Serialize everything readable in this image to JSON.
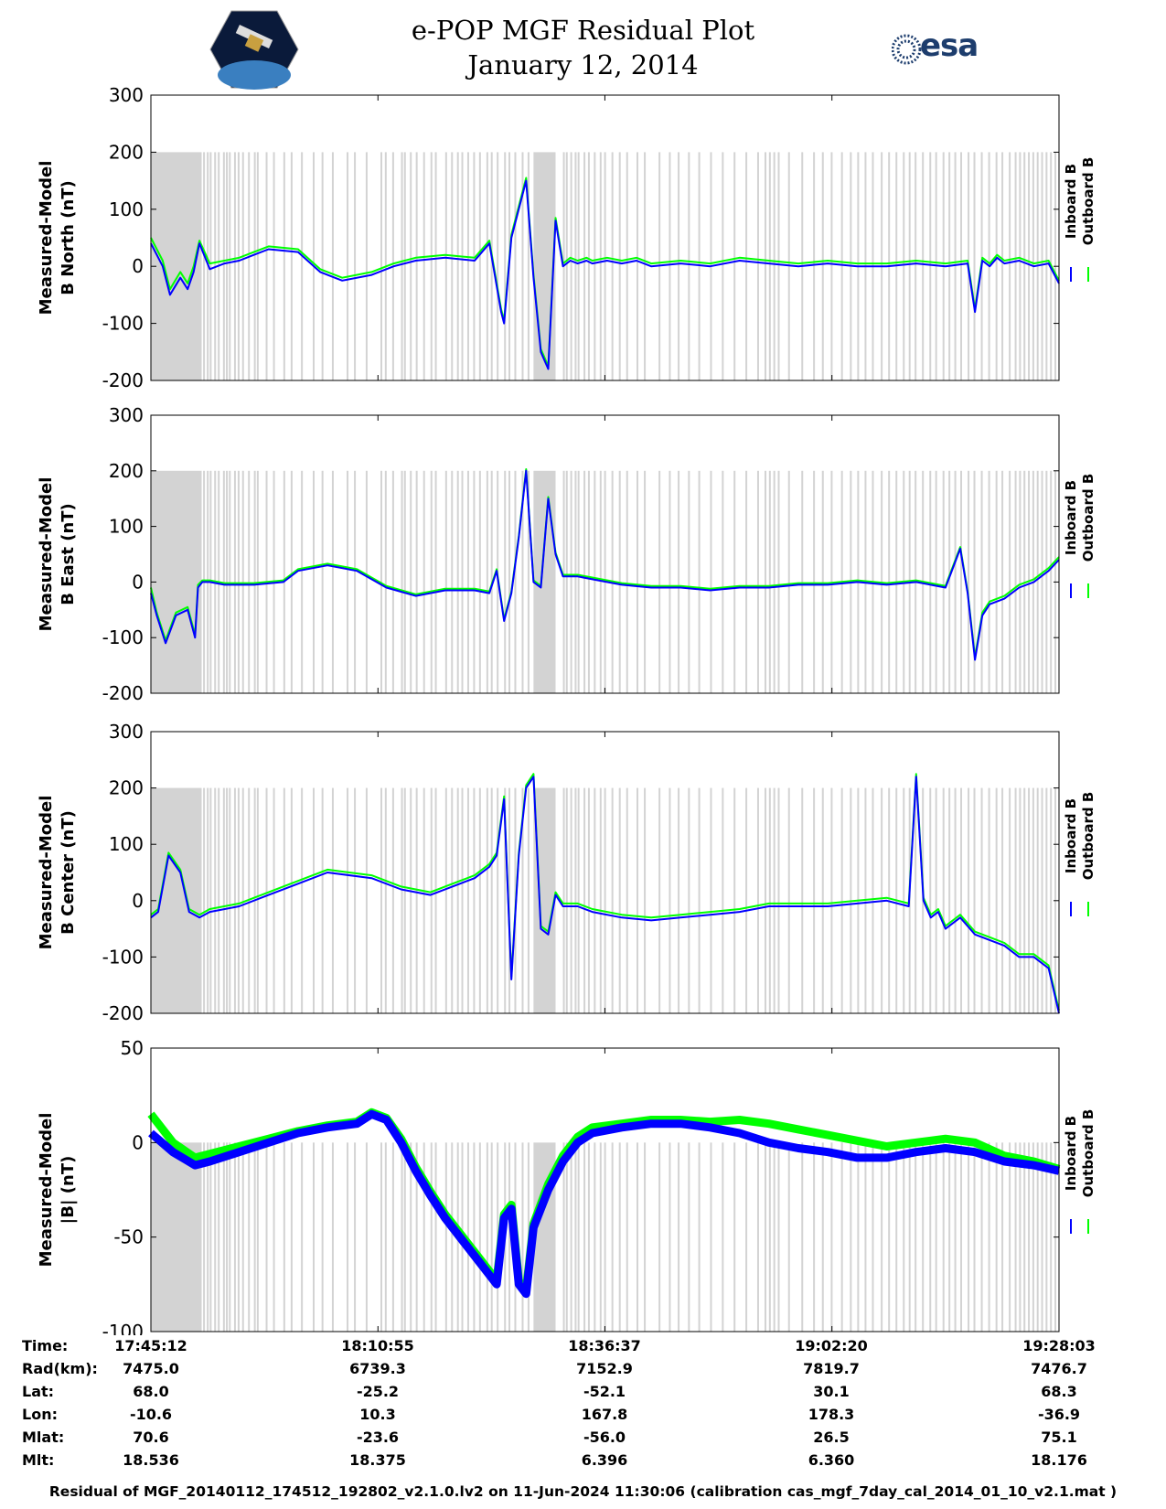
{
  "header": {
    "title_line1": "e-POP MGF Residual Plot",
    "title_line2": "January 12, 2014",
    "logo_left": "cassiope-mission-logo",
    "logo_right_text": "esa"
  },
  "colors": {
    "inboard": "#0000ff",
    "outboard": "#00ff00",
    "gap_shading": "#d3d3d3"
  },
  "chart_data": [
    {
      "type": "line",
      "panel": "b-north",
      "ylabel_line1": "Measured-Model",
      "ylabel_line2": "B North (nT)",
      "ylim": [
        -200,
        300
      ],
      "yticks": [
        -200,
        -100,
        0,
        100,
        200,
        300
      ],
      "xlim": [
        0,
        6171
      ],
      "xtick_seconds": [
        0,
        1543,
        3085,
        4628,
        6171
      ],
      "legend": [
        "Inboard B",
        "Outboard B"
      ],
      "legend_placement": "right-outside",
      "series": [
        {
          "name": "Inboard B",
          "x": [
            0,
            80,
            130,
            200,
            250,
            290,
            330,
            400,
            500,
            600,
            700,
            800,
            1000,
            1150,
            1300,
            1500,
            1650,
            1800,
            2000,
            2200,
            2300,
            2380,
            2400,
            2450,
            2550,
            2600,
            2650,
            2700,
            2750,
            2800,
            2850,
            2900,
            2960,
            3000,
            3100,
            3200,
            3300,
            3400,
            3600,
            3800,
            4000,
            4200,
            4400,
            4600,
            4800,
            5000,
            5200,
            5400,
            5550,
            5600,
            5650,
            5700,
            5750,
            5800,
            5900,
            6000,
            6100,
            6171
          ],
          "values": [
            40,
            0,
            -50,
            -20,
            -40,
            -10,
            40,
            -5,
            5,
            10,
            20,
            30,
            25,
            -10,
            -25,
            -15,
            0,
            10,
            15,
            10,
            40,
            -80,
            -100,
            50,
            150,
            -20,
            -150,
            -180,
            80,
            0,
            10,
            5,
            10,
            5,
            10,
            5,
            10,
            0,
            5,
            0,
            10,
            5,
            0,
            5,
            0,
            0,
            5,
            0,
            5,
            -80,
            10,
            0,
            15,
            5,
            10,
            0,
            5,
            -30
          ]
        },
        {
          "name": "Outboard B",
          "x": [
            0,
            80,
            130,
            200,
            250,
            290,
            330,
            400,
            500,
            600,
            700,
            800,
            1000,
            1150,
            1300,
            1500,
            1650,
            1800,
            2000,
            2200,
            2300,
            2380,
            2400,
            2450,
            2550,
            2600,
            2650,
            2700,
            2750,
            2800,
            2850,
            2900,
            2960,
            3000,
            3100,
            3200,
            3300,
            3400,
            3600,
            3800,
            4000,
            4200,
            4400,
            4600,
            4800,
            5000,
            5200,
            5400,
            5550,
            5600,
            5650,
            5700,
            5750,
            5800,
            5900,
            6000,
            6100,
            6171
          ],
          "values": [
            50,
            10,
            -40,
            -10,
            -30,
            0,
            45,
            5,
            10,
            15,
            25,
            35,
            30,
            -5,
            -20,
            -10,
            5,
            15,
            20,
            15,
            45,
            -75,
            -95,
            55,
            155,
            -15,
            -145,
            -175,
            85,
            5,
            15,
            10,
            15,
            10,
            15,
            10,
            15,
            5,
            10,
            5,
            15,
            10,
            5,
            10,
            5,
            5,
            10,
            5,
            10,
            -75,
            15,
            5,
            20,
            10,
            15,
            5,
            10,
            -25
          ]
        }
      ]
    },
    {
      "type": "line",
      "panel": "b-east",
      "ylabel_line1": "Measured-Model",
      "ylabel_line2": "B East (nT)",
      "ylim": [
        -200,
        300
      ],
      "yticks": [
        -200,
        -100,
        0,
        100,
        200,
        300
      ],
      "xlim": [
        0,
        6171
      ],
      "legend": [
        "Inboard B",
        "Outboard B"
      ],
      "legend_placement": "right-outside",
      "series": [
        {
          "name": "Inboard B",
          "x": [
            0,
            40,
            100,
            170,
            250,
            300,
            320,
            350,
            400,
            500,
            700,
            900,
            1000,
            1200,
            1400,
            1600,
            1800,
            2000,
            2200,
            2300,
            2350,
            2400,
            2450,
            2500,
            2550,
            2600,
            2650,
            2700,
            2750,
            2800,
            2900,
            3000,
            3200,
            3400,
            3600,
            3800,
            4000,
            4200,
            4400,
            4600,
            4800,
            5000,
            5200,
            5400,
            5500,
            5550,
            5600,
            5650,
            5700,
            5800,
            5900,
            6000,
            6100,
            6171
          ],
          "values": [
            -20,
            -60,
            -110,
            -60,
            -50,
            -100,
            -10,
            0,
            0,
            -5,
            -5,
            0,
            20,
            30,
            20,
            -10,
            -25,
            -15,
            -15,
            -20,
            20,
            -70,
            -20,
            80,
            200,
            0,
            -10,
            150,
            50,
            10,
            10,
            5,
            -5,
            -10,
            -10,
            -15,
            -10,
            -10,
            -5,
            -5,
            0,
            -5,
            0,
            -10,
            60,
            -20,
            -140,
            -60,
            -40,
            -30,
            -10,
            0,
            20,
            40
          ]
        },
        {
          "name": "Outboard B",
          "x": [
            0,
            40,
            100,
            170,
            250,
            300,
            320,
            350,
            400,
            500,
            700,
            900,
            1000,
            1200,
            1400,
            1600,
            1800,
            2000,
            2200,
            2300,
            2350,
            2400,
            2450,
            2500,
            2550,
            2600,
            2650,
            2700,
            2750,
            2800,
            2900,
            3000,
            3200,
            3400,
            3600,
            3800,
            4000,
            4200,
            4400,
            4600,
            4800,
            5000,
            5200,
            5400,
            5500,
            5550,
            5600,
            5650,
            5700,
            5800,
            5900,
            6000,
            6100,
            6171
          ],
          "values": [
            -10,
            -55,
            -105,
            -55,
            -45,
            -95,
            -5,
            3,
            3,
            -2,
            -2,
            3,
            23,
            33,
            23,
            -7,
            -22,
            -12,
            -12,
            -17,
            23,
            -67,
            -17,
            83,
            203,
            3,
            -7,
            153,
            53,
            13,
            13,
            8,
            -2,
            -7,
            -7,
            -12,
            -7,
            -7,
            -2,
            -2,
            3,
            -2,
            3,
            -7,
            63,
            -17,
            -135,
            -55,
            -35,
            -25,
            -5,
            5,
            25,
            45
          ]
        }
      ]
    },
    {
      "type": "line",
      "panel": "b-center",
      "ylabel_line1": "Measured-Model",
      "ylabel_line2": "B Center (nT)",
      "ylim": [
        -200,
        300
      ],
      "yticks": [
        -200,
        -100,
        0,
        100,
        200,
        300
      ],
      "xlim": [
        0,
        6171
      ],
      "legend": [
        "Inboard B",
        "Outboard B"
      ],
      "legend_placement": "right-outside",
      "series": [
        {
          "name": "Inboard B",
          "x": [
            0,
            50,
            120,
            200,
            260,
            330,
            400,
            600,
            800,
            1000,
            1200,
            1500,
            1700,
            1900,
            2100,
            2200,
            2300,
            2350,
            2400,
            2450,
            2500,
            2550,
            2600,
            2650,
            2700,
            2750,
            2800,
            2900,
            3000,
            3200,
            3400,
            3600,
            3800,
            4000,
            4200,
            4400,
            4600,
            4800,
            5000,
            5150,
            5200,
            5250,
            5300,
            5350,
            5400,
            5500,
            5600,
            5700,
            5800,
            5900,
            6000,
            6100,
            6171
          ],
          "values": [
            -30,
            -20,
            80,
            50,
            -20,
            -30,
            -20,
            -10,
            10,
            30,
            50,
            40,
            20,
            10,
            30,
            40,
            60,
            80,
            180,
            -140,
            80,
            200,
            220,
            -50,
            -60,
            10,
            -10,
            -10,
            -20,
            -30,
            -35,
            -30,
            -25,
            -20,
            -10,
            -10,
            -10,
            -5,
            0,
            -10,
            220,
            0,
            -30,
            -20,
            -50,
            -30,
            -60,
            -70,
            -80,
            -100,
            -100,
            -120,
            -200
          ]
        },
        {
          "name": "Outboard B",
          "x": [
            0,
            50,
            120,
            200,
            260,
            330,
            400,
            600,
            800,
            1000,
            1200,
            1500,
            1700,
            1900,
            2100,
            2200,
            2300,
            2350,
            2400,
            2450,
            2500,
            2550,
            2600,
            2650,
            2700,
            2750,
            2800,
            2900,
            3000,
            3200,
            3400,
            3600,
            3800,
            4000,
            4200,
            4400,
            4600,
            4800,
            5000,
            5150,
            5200,
            5250,
            5300,
            5350,
            5400,
            5500,
            5600,
            5700,
            5800,
            5900,
            6000,
            6100,
            6171
          ],
          "values": [
            -25,
            -15,
            85,
            55,
            -15,
            -25,
            -15,
            -5,
            15,
            35,
            55,
            45,
            25,
            15,
            35,
            45,
            65,
            85,
            185,
            -135,
            85,
            205,
            225,
            -45,
            -55,
            15,
            -5,
            -5,
            -15,
            -25,
            -30,
            -25,
            -20,
            -15,
            -5,
            -5,
            -5,
            0,
            5,
            -5,
            225,
            5,
            -25,
            -15,
            -45,
            -25,
            -55,
            -65,
            -75,
            -95,
            -95,
            -115,
            -195
          ]
        }
      ]
    },
    {
      "type": "line",
      "panel": "b-total",
      "ylabel_line1": "Measured-Model",
      "ylabel_line2": "|B| (nT)",
      "ylim": [
        -100,
        50
      ],
      "yticks": [
        -100,
        -50,
        0,
        50
      ],
      "xlim": [
        0,
        6171
      ],
      "legend": [
        "Inboard B",
        "Outboard B"
      ],
      "legend_placement": "right-outside",
      "series": [
        {
          "name": "Inboard B",
          "x": [
            0,
            150,
            300,
            400,
            600,
            800,
            1000,
            1200,
            1400,
            1500,
            1600,
            1700,
            1800,
            1900,
            2000,
            2100,
            2200,
            2300,
            2350,
            2400,
            2450,
            2500,
            2550,
            2600,
            2700,
            2800,
            2900,
            3000,
            3200,
            3400,
            3600,
            3800,
            4000,
            4200,
            4400,
            4600,
            4800,
            5000,
            5200,
            5400,
            5600,
            5800,
            6000,
            6171
          ],
          "values": [
            5,
            -5,
            -12,
            -10,
            -5,
            0,
            5,
            8,
            10,
            15,
            12,
            0,
            -15,
            -28,
            -40,
            -50,
            -60,
            -70,
            -75,
            -40,
            -35,
            -75,
            -80,
            -45,
            -25,
            -10,
            0,
            5,
            8,
            10,
            10,
            8,
            5,
            0,
            -3,
            -5,
            -8,
            -8,
            -5,
            -3,
            -5,
            -10,
            -12,
            -15
          ]
        },
        {
          "name": "Outboard B",
          "x": [
            0,
            150,
            300,
            400,
            600,
            800,
            1000,
            1200,
            1400,
            1500,
            1600,
            1700,
            1800,
            1900,
            2000,
            2100,
            2200,
            2300,
            2350,
            2400,
            2450,
            2500,
            2550,
            2600,
            2700,
            2800,
            2900,
            3000,
            3200,
            3400,
            3600,
            3800,
            4000,
            4200,
            4400,
            4600,
            4800,
            5000,
            5200,
            5400,
            5600,
            5800,
            6000,
            6171
          ],
          "values": [
            15,
            0,
            -8,
            -6,
            -2,
            2,
            6,
            9,
            11,
            16,
            13,
            2,
            -13,
            -26,
            -38,
            -48,
            -58,
            -68,
            -73,
            -38,
            -33,
            -73,
            -78,
            -43,
            -22,
            -7,
            3,
            8,
            10,
            12,
            12,
            11,
            12,
            10,
            7,
            4,
            1,
            -2,
            0,
            2,
            0,
            -7,
            -10,
            -14
          ]
        }
      ]
    }
  ],
  "gap_shading": {
    "solid_block_seconds": [
      0,
      345
    ],
    "dense_band_seconds": [
      [
        2600,
        2750
      ]
    ],
    "stripe_seconds": [
      355,
      380,
      400,
      430,
      455,
      490,
      510,
      530,
      565,
      590,
      620,
      660,
      700,
      720,
      780,
      830,
      900,
      950,
      1020,
      1100,
      1160,
      1230,
      1330,
      1380,
      1460,
      1560,
      1590,
      1640,
      1700,
      1720,
      1760,
      1800,
      1850,
      1900,
      1930,
      2000,
      2040,
      2080,
      2110,
      2150,
      2190,
      2230,
      2280,
      2310,
      2350,
      2400,
      2430,
      2470,
      2520,
      2560,
      2800,
      2820,
      2850,
      2880,
      2900,
      2940,
      2970,
      3010,
      3050,
      3080,
      3130,
      3180,
      3230,
      3300,
      3350,
      3450,
      3520,
      3580,
      3650,
      3720,
      3800,
      3880,
      3960,
      4040,
      4120,
      4170,
      4200,
      4230,
      4260,
      4330,
      4420,
      4500,
      4560,
      4620,
      4690,
      4750,
      4800,
      4850,
      4900,
      4960,
      5010,
      5060,
      5110,
      5150,
      5190,
      5240,
      5290,
      5330,
      5380,
      5420,
      5460,
      5500,
      5550,
      5590,
      5640,
      5690,
      5740,
      5780,
      5830,
      5870,
      5900,
      5930,
      5960,
      5990,
      6020,
      6050,
      6080,
      6110,
      6140
    ]
  },
  "info_table": {
    "row_labels": [
      "Time:",
      "Rad(km):",
      "Lat:",
      "Lon:",
      "Mlat:",
      "Mlt:"
    ],
    "columns": [
      [
        "17:45:12",
        "7475.0",
        "68.0",
        "-10.6",
        "70.6",
        "18.536"
      ],
      [
        "18:10:55",
        "6739.3",
        "-25.2",
        "10.3",
        "-23.6",
        "18.375"
      ],
      [
        "18:36:37",
        "7152.9",
        "-52.1",
        "167.8",
        "-56.0",
        "6.396"
      ],
      [
        "19:02:20",
        "7819.7",
        "30.1",
        "178.3",
        "26.5",
        "6.360"
      ],
      [
        "19:28:03",
        "7476.7",
        "68.3",
        "-36.9",
        "75.1",
        "18.176"
      ]
    ]
  },
  "footer": "Residual of MGF_20140112_174512_192802_v2.1.0.lv2 on 11-Jun-2024 11:30:06 (calibration cas_mgf_7day_cal_2014_01_10_v2.1.mat )"
}
